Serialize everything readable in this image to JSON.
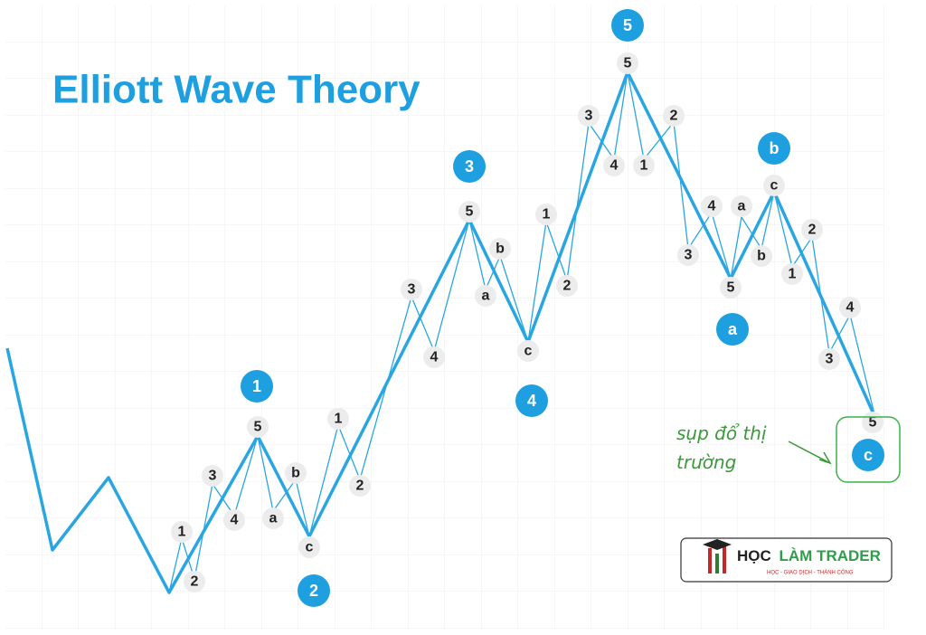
{
  "title": "Elliott Wave Theory",
  "waves": [
    {
      "label": "1",
      "subwaves": [
        "1",
        "2",
        "3",
        "4",
        "5"
      ]
    },
    {
      "label": "2",
      "subwaves": [
        "a",
        "b",
        "c"
      ]
    },
    {
      "label": "3",
      "subwaves": [
        "1",
        "2",
        "3",
        "4",
        "5"
      ]
    },
    {
      "label": "4",
      "subwaves": [
        "a",
        "b",
        "c"
      ]
    },
    {
      "label": "5",
      "subwaves": [
        "1",
        "2",
        "3",
        "4",
        "5"
      ]
    },
    {
      "label": "a",
      "subwaves": [
        "1",
        "2",
        "3",
        "4",
        "5"
      ]
    },
    {
      "label": "b",
      "subwaves": [
        "a",
        "b",
        "c"
      ]
    },
    {
      "label": "c",
      "subwaves": [
        "1",
        "2",
        "3",
        "4",
        "5"
      ]
    }
  ],
  "annotation": {
    "lines": [
      "sụp đổ thị",
      "trường"
    ]
  },
  "logo": {
    "brand": [
      "HỌC",
      "LÀM TRADER"
    ],
    "tagline": "HỌC - GIAO DỊCH - THÀNH CÔNG"
  }
}
